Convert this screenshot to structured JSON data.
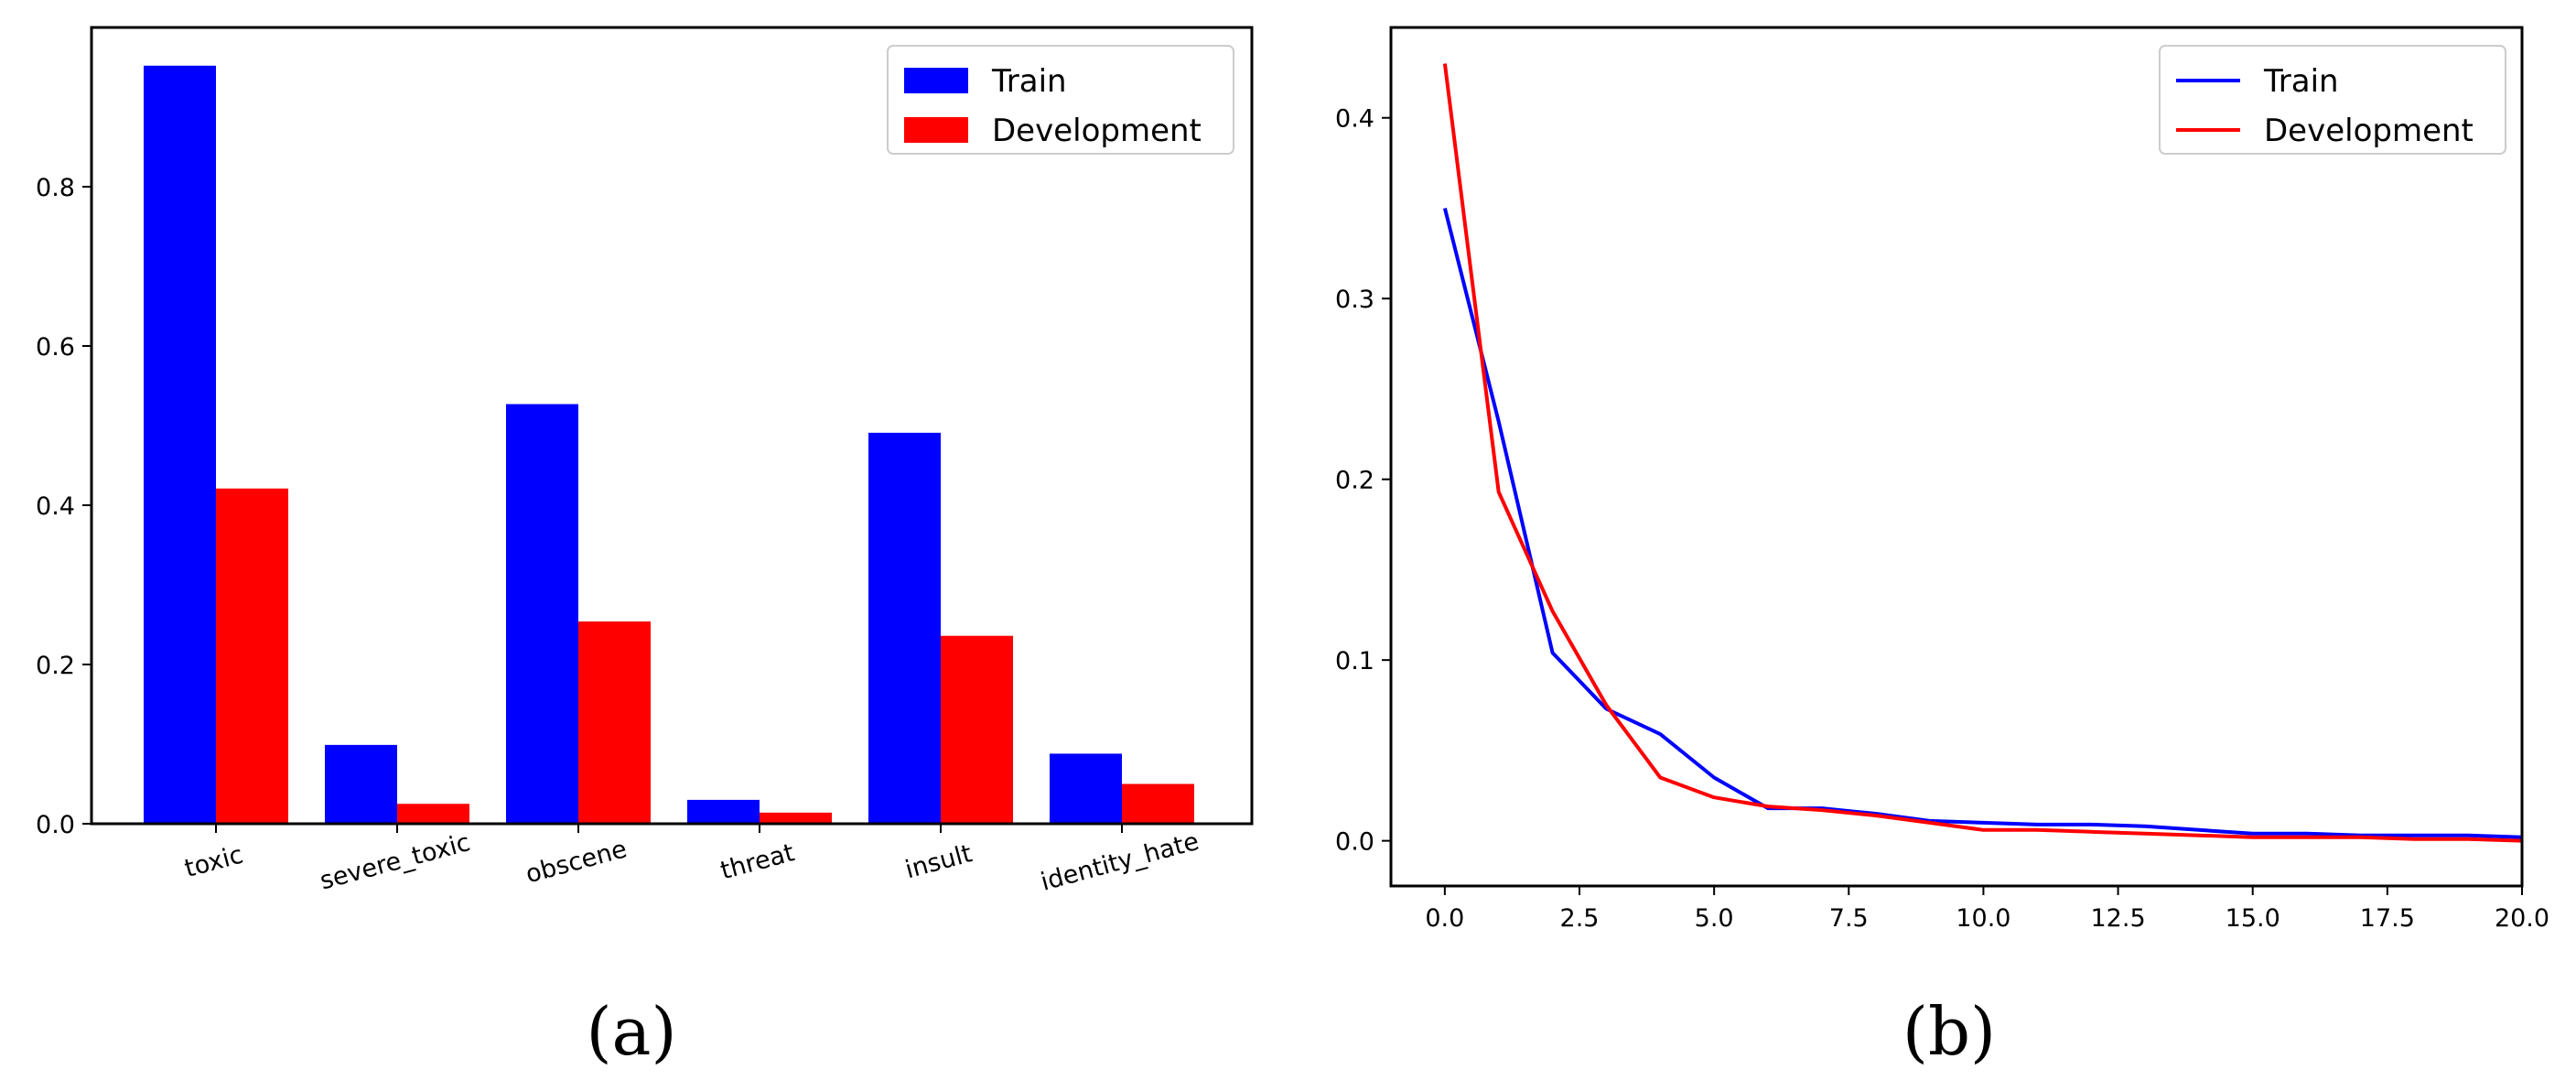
{
  "chart_data": [
    {
      "type": "bar",
      "panel_label": "a",
      "categories": [
        "toxic",
        "severe_toxic",
        "obscene",
        "threat",
        "insult",
        "identity_hate"
      ],
      "series": [
        {
          "name": "Train",
          "color": "#0000ff",
          "values": [
            0.952,
            0.099,
            0.527,
            0.03,
            0.491,
            0.088
          ]
        },
        {
          "name": "Development",
          "color": "#ff0000",
          "values": [
            0.421,
            0.025,
            0.254,
            0.014,
            0.236,
            0.05
          ]
        }
      ],
      "yticks": [
        "0.0",
        "0.2",
        "0.4",
        "0.6",
        "0.8"
      ],
      "ytick_values": [
        0,
        0.2,
        0.4,
        0.6,
        0.8
      ],
      "ylim": [
        0,
        1.0
      ],
      "legend": [
        "Train",
        "Development"
      ],
      "legend_position": "top-right",
      "title": "",
      "xlabel": "",
      "ylabel": ""
    },
    {
      "type": "line",
      "panel_label": "b",
      "series": [
        {
          "name": "Train",
          "color": "#0000ff",
          "x": [
            0,
            1,
            2,
            3,
            4,
            5,
            6,
            7,
            8,
            9,
            10,
            11,
            12,
            13,
            14,
            15,
            16,
            17,
            18,
            19,
            20
          ],
          "y": [
            0.35,
            0.232,
            0.104,
            0.073,
            0.059,
            0.035,
            0.018,
            0.018,
            0.015,
            0.011,
            0.01,
            0.009,
            0.009,
            0.008,
            0.006,
            0.004,
            0.004,
            0.003,
            0.003,
            0.003,
            0.002
          ]
        },
        {
          "name": "Development",
          "color": "#ff0000",
          "x": [
            0,
            1,
            2,
            3,
            4,
            5,
            6,
            7,
            8,
            9,
            10,
            11,
            12,
            13,
            14,
            15,
            16,
            17,
            18,
            19,
            20
          ],
          "y": [
            0.43,
            0.193,
            0.127,
            0.075,
            0.035,
            0.024,
            0.019,
            0.017,
            0.014,
            0.01,
            0.006,
            0.006,
            0.005,
            0.004,
            0.003,
            0.002,
            0.002,
            0.002,
            0.001,
            0.001,
            0.0
          ]
        }
      ],
      "xlim": [
        -1,
        20
      ],
      "ylim": [
        -0.025,
        0.45
      ],
      "xticks": [
        "0.0",
        "2.5",
        "5.0",
        "7.5",
        "10.0",
        "12.5",
        "15.0",
        "17.5",
        "20.0"
      ],
      "xtick_values": [
        0,
        2.5,
        5,
        7.5,
        10,
        12.5,
        15,
        17.5,
        20
      ],
      "yticks": [
        "0.0",
        "0.1",
        "0.2",
        "0.3",
        "0.4"
      ],
      "ytick_values": [
        0,
        0.1,
        0.2,
        0.3,
        0.4
      ],
      "legend": [
        "Train",
        "Development"
      ],
      "legend_position": "top-right",
      "title": "",
      "xlabel": "",
      "ylabel": ""
    }
  ],
  "captions": [
    "(a)",
    "(b)"
  ]
}
